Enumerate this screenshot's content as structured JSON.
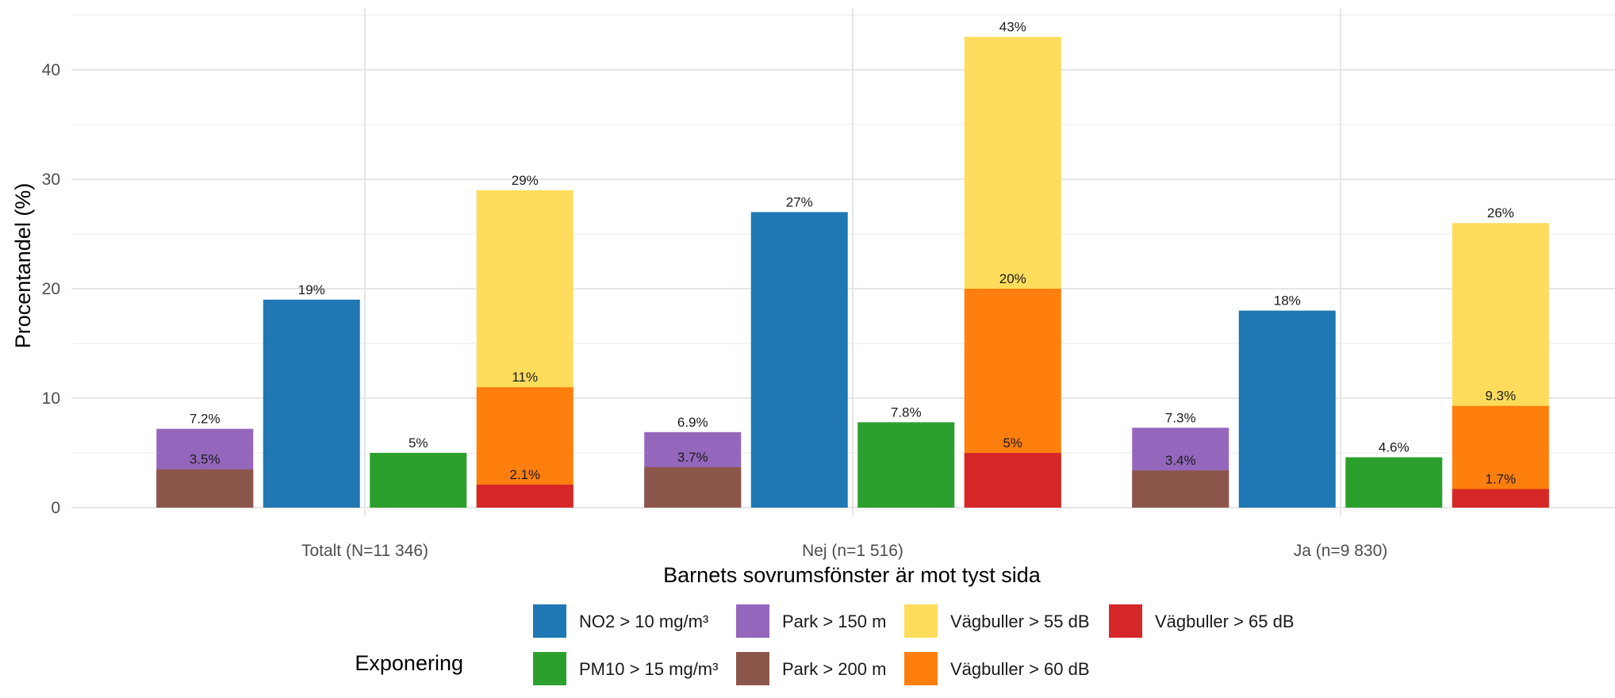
{
  "chart_data": {
    "type": "bar",
    "xlabel": "Barnets sovrumsfönster är mot tyst sida",
    "ylabel": "Procentandel (%)",
    "ylim": [
      0,
      45
    ],
    "yticks": [
      "0",
      "10",
      "20",
      "30",
      "40"
    ],
    "grid": true,
    "categories": [
      "Totalt (N=11 346)",
      "Nej (n=1 516)",
      "Ja (n=9 830)"
    ],
    "series": [
      {
        "name": "Park > 150 m",
        "color": "#9467BD",
        "values": [
          7.2,
          6.9,
          7.3
        ],
        "labels": [
          "7.2%",
          "6.9%",
          "7.3%"
        ]
      },
      {
        "name": "Park > 200 m",
        "color": "#8C564B",
        "values": [
          3.5,
          3.7,
          3.4
        ],
        "labels": [
          "3.5%",
          "3.7%",
          "3.4%"
        ]
      },
      {
        "name": "NO2 > 10 mg/m³",
        "color": "#1F77B4",
        "values": [
          19,
          27,
          18
        ],
        "labels": [
          "19%",
          "27%",
          "18%"
        ]
      },
      {
        "name": "PM10 > 15 mg/m³",
        "color": "#2CA02C",
        "values": [
          5,
          7.8,
          4.6
        ],
        "labels": [
          "5%",
          "7.8%",
          "4.6%"
        ]
      },
      {
        "name": "Vägbuller > 55 dB",
        "color": "#FFDC5C",
        "values": [
          29,
          43,
          26
        ],
        "labels": [
          "29%",
          "43%",
          "26%"
        ]
      },
      {
        "name": "Vägbuller > 60 dB",
        "color": "#FF7F0E",
        "values": [
          11,
          20,
          9.3
        ],
        "labels": [
          "11%",
          "20%",
          "9.3%"
        ]
      },
      {
        "name": "Vägbuller > 65 dB",
        "color": "#D62728",
        "values": [
          2.1,
          5,
          1.7
        ],
        "labels": [
          "2.1%",
          "5%",
          "1.7%"
        ]
      }
    ],
    "bar_groups": [
      {
        "series": [
          "Park > 150 m",
          "Park > 200 m"
        ]
      },
      {
        "series": [
          "NO2 > 10 mg/m³"
        ]
      },
      {
        "series": [
          "PM10 > 15 mg/m³"
        ]
      },
      {
        "series": [
          "Vägbuller > 55 dB",
          "Vägbuller > 60 dB",
          "Vägbuller > 65 dB"
        ]
      }
    ],
    "legend": {
      "title": "Exponering",
      "position": "bottom",
      "items": [
        [
          "NO2 > 10 mg/m³",
          "Park > 150 m",
          "Vägbuller > 55 dB",
          "Vägbuller > 65 dB"
        ],
        [
          "PM10 > 15 mg/m³",
          "Park > 200 m",
          "Vägbuller > 60 dB"
        ]
      ]
    }
  }
}
